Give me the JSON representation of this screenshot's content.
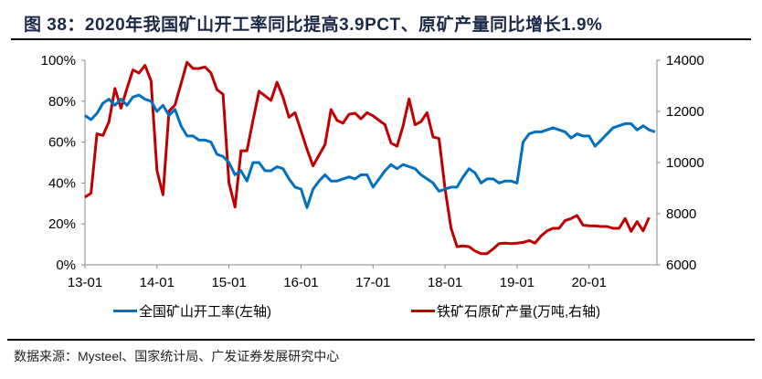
{
  "title": "图 38：2020年我国矿山开工率同比提高3.9PCT、原矿产量同比增长1.9%",
  "source": "数据来源：Mysteel、国家统计局、广发证券发展研究中心",
  "chart_data": {
    "type": "line",
    "title": "图 38：2020年我国矿山开工率同比提高3.9PCT、原矿产量同比增长1.9%",
    "x_tick_labels": [
      "13-01",
      "14-01",
      "15-01",
      "16-01",
      "17-01",
      "18-01",
      "19-01",
      "20-01"
    ],
    "x_ticks": [
      "2013-01",
      "2014-01",
      "2015-01",
      "2016-01",
      "2017-01",
      "2018-01",
      "2019-01",
      "2020-01"
    ],
    "xlim": [
      "2013-01",
      "2020-12"
    ],
    "y_left": {
      "ylim": [
        0,
        100
      ],
      "ticks": [
        0,
        20,
        40,
        60,
        80,
        100
      ],
      "tick_labels": [
        "0%",
        "20%",
        "40%",
        "60%",
        "80%",
        "100%"
      ]
    },
    "y_right": {
      "ylim": [
        6000,
        14000
      ],
      "ticks": [
        6000,
        8000,
        10000,
        12000,
        14000
      ],
      "tick_labels": [
        "6000",
        "8000",
        "10000",
        "12000",
        "14000"
      ]
    },
    "grid": false,
    "legend_position": "bottom",
    "x": [
      "2013-01",
      "2013-02",
      "2013-03",
      "2013-04",
      "2013-05",
      "2013-06",
      "2013-07",
      "2013-08",
      "2013-09",
      "2013-10",
      "2013-11",
      "2013-12",
      "2014-01",
      "2014-02",
      "2014-03",
      "2014-04",
      "2014-05",
      "2014-06",
      "2014-07",
      "2014-08",
      "2014-09",
      "2014-10",
      "2014-11",
      "2014-12",
      "2015-01",
      "2015-02",
      "2015-03",
      "2015-04",
      "2015-05",
      "2015-06",
      "2015-07",
      "2015-08",
      "2015-09",
      "2015-10",
      "2015-11",
      "2015-12",
      "2016-01",
      "2016-02",
      "2016-03",
      "2016-04",
      "2016-05",
      "2016-06",
      "2016-07",
      "2016-08",
      "2016-09",
      "2016-10",
      "2016-11",
      "2016-12",
      "2017-01",
      "2017-02",
      "2017-03",
      "2017-04",
      "2017-05",
      "2017-06",
      "2017-07",
      "2017-08",
      "2017-09",
      "2017-10",
      "2017-11",
      "2017-12",
      "2018-01",
      "2018-02",
      "2018-03",
      "2018-04",
      "2018-05",
      "2018-06",
      "2018-07",
      "2018-08",
      "2018-09",
      "2018-10",
      "2018-11",
      "2018-12",
      "2019-01",
      "2019-02",
      "2019-03",
      "2019-04",
      "2019-05",
      "2019-06",
      "2019-07",
      "2019-08",
      "2019-09",
      "2019-10",
      "2019-11",
      "2019-12",
      "2020-01",
      "2020-02",
      "2020-03",
      "2020-04",
      "2020-05",
      "2020-06",
      "2020-07",
      "2020-08",
      "2020-09",
      "2020-10",
      "2020-11",
      "2020-12"
    ],
    "series": [
      {
        "name": "全国矿山开工率(左轴)",
        "axis": "left",
        "color": "#0070c0",
        "values": [
          73,
          71,
          74,
          79,
          81,
          78,
          81,
          78,
          82,
          83,
          81,
          80,
          75,
          78,
          73,
          76,
          68,
          63,
          63,
          61,
          61,
          60,
          54,
          53,
          50,
          44,
          46,
          41,
          50,
          50,
          46,
          46,
          48,
          47,
          42,
          38,
          37,
          28,
          37,
          41,
          44,
          41,
          41,
          42,
          43,
          42,
          44,
          44,
          38,
          42,
          46,
          49,
          47,
          49,
          48,
          47,
          44,
          42,
          40,
          36,
          37,
          38,
          38,
          43,
          47,
          45,
          40,
          42,
          42,
          40,
          41,
          41,
          40,
          60,
          64,
          65,
          65,
          66,
          67,
          66,
          65,
          62,
          64,
          63,
          63,
          58,
          61,
          64,
          67,
          68,
          69,
          69,
          66,
          68,
          66,
          65
        ]
      },
      {
        "name": "铁矿石原矿产量(万吨,右轴)",
        "axis": "right",
        "color": "#c00000",
        "values": [
          8650,
          8800,
          11120,
          11060,
          11600,
          12900,
          12130,
          12900,
          13620,
          13500,
          13800,
          13200,
          9690,
          8740,
          12010,
          12250,
          13080,
          13920,
          13680,
          13680,
          13740,
          13500,
          12850,
          12670,
          9210,
          8260,
          10460,
          10460,
          11650,
          12790,
          12610,
          12430,
          13140,
          12550,
          11770,
          11950,
          11240,
          10520,
          9870,
          10290,
          10700,
          12070,
          11650,
          11540,
          11890,
          11930,
          11710,
          11950,
          11830,
          11650,
          11480,
          10760,
          10640,
          11420,
          12490,
          11480,
          11600,
          11950,
          11000,
          10940,
          8980,
          7430,
          6710,
          6740,
          6710,
          6540,
          6440,
          6440,
          6620,
          6830,
          6850,
          6830,
          6850,
          6880,
          6950,
          6850,
          7130,
          7330,
          7430,
          7430,
          7730,
          7810,
          7930,
          7550,
          7530,
          7520,
          7500,
          7500,
          7430,
          7430,
          7810,
          7310,
          7690,
          7330,
          7850,
          null
        ]
      }
    ]
  }
}
